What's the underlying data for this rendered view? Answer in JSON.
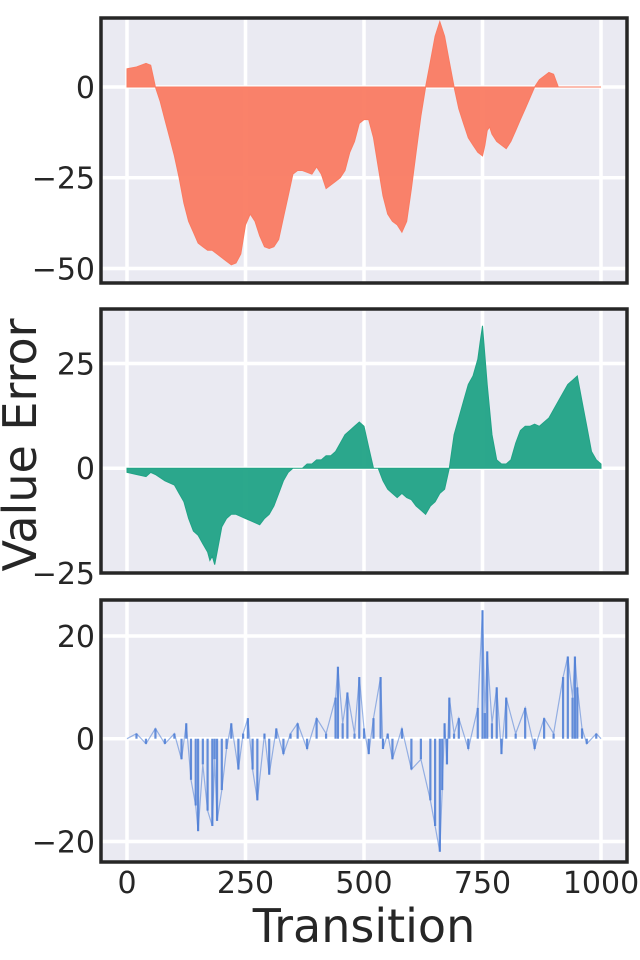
{
  "chart_data": {
    "type": "area",
    "shared_xlabel": "Transition",
    "shared_ylabel": "Value Error",
    "x_range": [
      0,
      1000
    ],
    "x_ticks": [
      0,
      250,
      500,
      750,
      1000
    ],
    "grid": true,
    "panels": [
      {
        "style": "filled-area",
        "color": "#fa7b62",
        "ylim": [
          -54,
          19
        ],
        "y_ticks": [
          -50,
          -25,
          0
        ],
        "series": [
          {
            "x": [
              0,
              20,
              40,
              50,
              55,
              60,
              70,
              80,
              90,
              100,
              110,
              120,
              130,
              140,
              150,
              160,
              170,
              180,
              190,
              200,
              210,
              220,
              230,
              240,
              250,
              260,
              270,
              280,
              290,
              300,
              310,
              320,
              330,
              340,
              350,
              360,
              370,
              380,
              390,
              400,
              410,
              420,
              430,
              440,
              450,
              460,
              470,
              480,
              490,
              500,
              510,
              520,
              530,
              540,
              550,
              560,
              570,
              580,
              590,
              600,
              610,
              620,
              630,
              640,
              650,
              660,
              670,
              680,
              690,
              700,
              710,
              720,
              730,
              740,
              750,
              755,
              760,
              765,
              770,
              780,
              790,
              800,
              810,
              820,
              830,
              840,
              850,
              860,
              870,
              880,
              890,
              900,
              910,
              920,
              930,
              940,
              950,
              960,
              970,
              980,
              990,
              1000
            ],
            "y": [
              5,
              5.5,
              6.5,
              6,
              3,
              0,
              -4,
              -9,
              -14,
              -19,
              -25,
              -32,
              -37,
              -40,
              -43,
              -44,
              -45,
              -45,
              -46,
              -47,
              -48,
              -49,
              -48.5,
              -46,
              -38,
              -35,
              -37,
              -41,
              -44,
              -44.5,
              -44,
              -42,
              -36,
              -30,
              -24,
              -23,
              -23,
              -23.5,
              -24,
              -22,
              -24,
              -28,
              -27,
              -26,
              -25,
              -23,
              -18,
              -15,
              -10,
              -9,
              -9,
              -14,
              -22,
              -30,
              -35,
              -37,
              -38,
              -40,
              -37,
              -28,
              -18,
              -8,
              0,
              7,
              14,
              18,
              14,
              7,
              0,
              -6,
              -10,
              -14,
              -16,
              -18,
              -19,
              -16,
              -12,
              -11,
              -13,
              -15,
              -16,
              -17,
              -15,
              -12,
              -9,
              -6,
              -3,
              0,
              2,
              3,
              4,
              3.5,
              0,
              0,
              0,
              0,
              0,
              0,
              0,
              0,
              0,
              0
            ]
          }
        ]
      },
      {
        "style": "filled-area",
        "color": "#21a386",
        "ylim": [
          -25,
          38
        ],
        "y_ticks": [
          -25,
          0,
          25
        ],
        "series": [
          {
            "x": [
              0,
              20,
              40,
              50,
              60,
              80,
              100,
              110,
              120,
              130,
              140,
              150,
              160,
              170,
              175,
              180,
              185,
              190,
              200,
              210,
              220,
              230,
              240,
              250,
              260,
              270,
              280,
              290,
              300,
              310,
              320,
              330,
              340,
              350,
              360,
              370,
              380,
              390,
              400,
              410,
              420,
              430,
              440,
              450,
              460,
              470,
              480,
              490,
              500,
              510,
              520,
              530,
              540,
              550,
              560,
              570,
              580,
              590,
              600,
              610,
              620,
              630,
              640,
              650,
              660,
              670,
              680,
              690,
              700,
              710,
              720,
              730,
              740,
              745,
              750,
              760,
              770,
              780,
              790,
              800,
              810,
              820,
              830,
              840,
              850,
              860,
              870,
              880,
              890,
              900,
              910,
              920,
              930,
              940,
              950,
              960,
              970,
              980,
              990,
              1000
            ],
            "y": [
              -1,
              -1.5,
              -2,
              -1,
              -1.5,
              -3,
              -4,
              -6,
              -8,
              -12,
              -15,
              -16,
              -18,
              -20,
              -22,
              -21,
              -23,
              -20,
              -14,
              -12,
              -11,
              -11,
              -11.5,
              -12,
              -12.5,
              -13,
              -13.5,
              -12,
              -11,
              -9,
              -6,
              -3,
              -1,
              0,
              0,
              0,
              1,
              1,
              2,
              2,
              3,
              3,
              4,
              6,
              8,
              9,
              10,
              11,
              10,
              5,
              0,
              0,
              -3,
              -5,
              -6,
              -7,
              -6,
              -7,
              -7.5,
              -9,
              -10,
              -11,
              -9,
              -8,
              -6,
              -5,
              0,
              8,
              12,
              16,
              20,
              22,
              26,
              30,
              34,
              20,
              8,
              2,
              1,
              1,
              2,
              6,
              9,
              10,
              10,
              10.5,
              10,
              11,
              12,
              14,
              16,
              18,
              20,
              21,
              22,
              16,
              10,
              4,
              2,
              1
            ]
          }
        ]
      },
      {
        "style": "spiky-signal",
        "color": "#4a7bd5",
        "ylim": [
          -24,
          27
        ],
        "y_ticks": [
          -20,
          0,
          20
        ],
        "series": [
          {
            "x": [
              0,
              20,
              40,
              60,
              80,
              100,
              115,
              125,
              135,
              145,
              150,
              160,
              170,
              180,
              185,
              190,
              200,
              210,
              220,
              235,
              245,
              255,
              265,
              275,
              290,
              300,
              315,
              330,
              345,
              360,
              380,
              400,
              420,
              440,
              445,
              455,
              465,
              480,
              490,
              500,
              510,
              520,
              535,
              540,
              550,
              560,
              580,
              600,
              620,
              640,
              650,
              660,
              665,
              670,
              675,
              680,
              690,
              700,
              720,
              740,
              750,
              755,
              760,
              770,
              780,
              790,
              800,
              820,
              840,
              860,
              880,
              900,
              920,
              930,
              940,
              945,
              950,
              960,
              970,
              990,
              1000
            ],
            "y": [
              0,
              1,
              -1,
              2,
              -1,
              1,
              -4,
              3,
              -8,
              -13,
              -18,
              -5,
              -14,
              -17,
              -4,
              -16,
              -10,
              -2,
              3,
              -6,
              1,
              4,
              -6,
              -12,
              1,
              -7,
              2,
              -3,
              1,
              3,
              -2,
              4,
              1,
              8,
              14,
              3,
              9,
              1,
              12,
              2,
              -3,
              4,
              12,
              -2,
              1,
              -4,
              2,
              -6,
              -4,
              -12,
              -17,
              -22,
              -10,
              3,
              -5,
              8,
              1,
              4,
              -2,
              6,
              25,
              5,
              17,
              3,
              10,
              -3,
              8,
              1,
              6,
              -2,
              4,
              1,
              12,
              16,
              8,
              16,
              10,
              2,
              -1,
              1,
              0
            ]
          }
        ]
      }
    ]
  }
}
